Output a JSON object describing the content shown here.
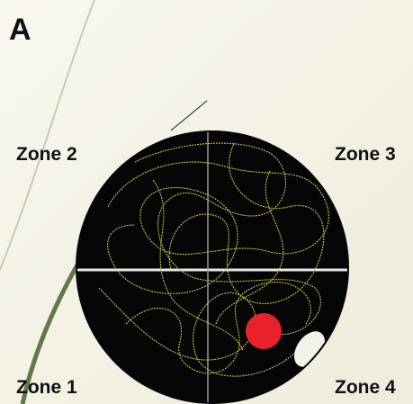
{
  "panel_label": "A",
  "zones": [
    "Zone 1",
    "Zone 2",
    "Zone 3",
    "Zone 4"
  ]
}
